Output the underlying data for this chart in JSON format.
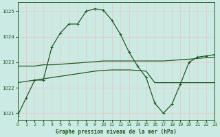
{
  "title": "Graphe pression niveau de la mer (hPa)",
  "background_color": "#cceae4",
  "grid_color": "#aad4cc",
  "line_color": "#1a5c1a",
  "xlim": [
    0,
    23
  ],
  "ylim": [
    1020.75,
    1025.35
  ],
  "yticks": [
    1021,
    1022,
    1023,
    1024,
    1025
  ],
  "xticks": [
    0,
    1,
    2,
    3,
    4,
    5,
    6,
    7,
    8,
    9,
    10,
    11,
    12,
    13,
    14,
    15,
    16,
    17,
    18,
    19,
    20,
    21,
    22,
    23
  ],
  "series_main": {
    "x": [
      0,
      1,
      2,
      3,
      4,
      5,
      6,
      7,
      8,
      9,
      10,
      11,
      12,
      13,
      14,
      15,
      16,
      17,
      18,
      19,
      20,
      21,
      22,
      23
    ],
    "y": [
      1020.9,
      1021.6,
      1022.3,
      1022.3,
      1023.6,
      1024.15,
      1024.5,
      1024.5,
      1025.0,
      1025.1,
      1025.05,
      1024.65,
      1024.1,
      1023.4,
      1022.85,
      1022.4,
      1021.4,
      1021.0,
      1021.35,
      1022.15,
      1023.0,
      1023.2,
      1023.25,
      1023.3
    ]
  },
  "series_smooth_upper": {
    "x": [
      0,
      1,
      2,
      3,
      4,
      5,
      6,
      7,
      8,
      9,
      10,
      11,
      12,
      13,
      14,
      15,
      16,
      17,
      18,
      19,
      20,
      21,
      22,
      23
    ],
    "y": [
      1022.85,
      1022.85,
      1022.85,
      1022.9,
      1022.9,
      1022.92,
      1022.95,
      1022.97,
      1023.0,
      1023.02,
      1023.05,
      1023.05,
      1023.05,
      1023.05,
      1023.05,
      1023.05,
      1023.05,
      1023.05,
      1023.07,
      1023.1,
      1023.12,
      1023.15,
      1023.18,
      1023.2
    ]
  },
  "series_smooth_lower": {
    "x": [
      0,
      1,
      2,
      3,
      4,
      5,
      6,
      7,
      8,
      9,
      10,
      11,
      12,
      13,
      14,
      15,
      16,
      17,
      18,
      19,
      20,
      21,
      22,
      23
    ],
    "y": [
      1022.2,
      1022.25,
      1022.3,
      1022.35,
      1022.4,
      1022.45,
      1022.5,
      1022.55,
      1022.6,
      1022.65,
      1022.68,
      1022.7,
      1022.7,
      1022.7,
      1022.68,
      1022.65,
      1022.2,
      1022.2,
      1022.2,
      1022.2,
      1022.2,
      1022.2,
      1022.2,
      1022.2
    ]
  }
}
